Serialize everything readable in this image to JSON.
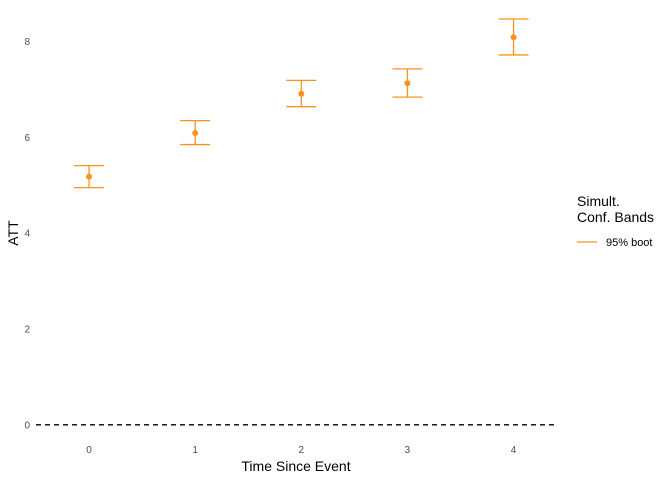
{
  "chart_data": {
    "type": "scatter",
    "subtype": "point-errorbar",
    "title": "",
    "xlabel": "Time Since Event",
    "ylabel": "ATT",
    "x": [
      0,
      1,
      2,
      3,
      4
    ],
    "x_tick_labels": [
      "0",
      "1",
      "2",
      "3",
      "4"
    ],
    "y_ticks": [
      0,
      2,
      4,
      6,
      8
    ],
    "y_tick_labels": [
      "0",
      "2",
      "4",
      "6",
      "8"
    ],
    "xlim": [
      -0.5,
      4.4
    ],
    "ylim": [
      -0.15,
      8.7
    ],
    "series": [
      {
        "name": "95% boot",
        "color": "#F7941D",
        "estimate": [
          5.18,
          6.09,
          6.91,
          7.13,
          8.09
        ],
        "lower": [
          4.95,
          5.85,
          6.64,
          6.84,
          7.72
        ],
        "upper": [
          5.41,
          6.35,
          7.19,
          7.43,
          8.47
        ]
      }
    ],
    "reference_line": {
      "y": 0,
      "style": "dashed",
      "color": "#000000"
    },
    "legend": {
      "title_line1": "Simult.",
      "title_line2": "Conf. Bands",
      "position": "right"
    },
    "grid": false
  }
}
